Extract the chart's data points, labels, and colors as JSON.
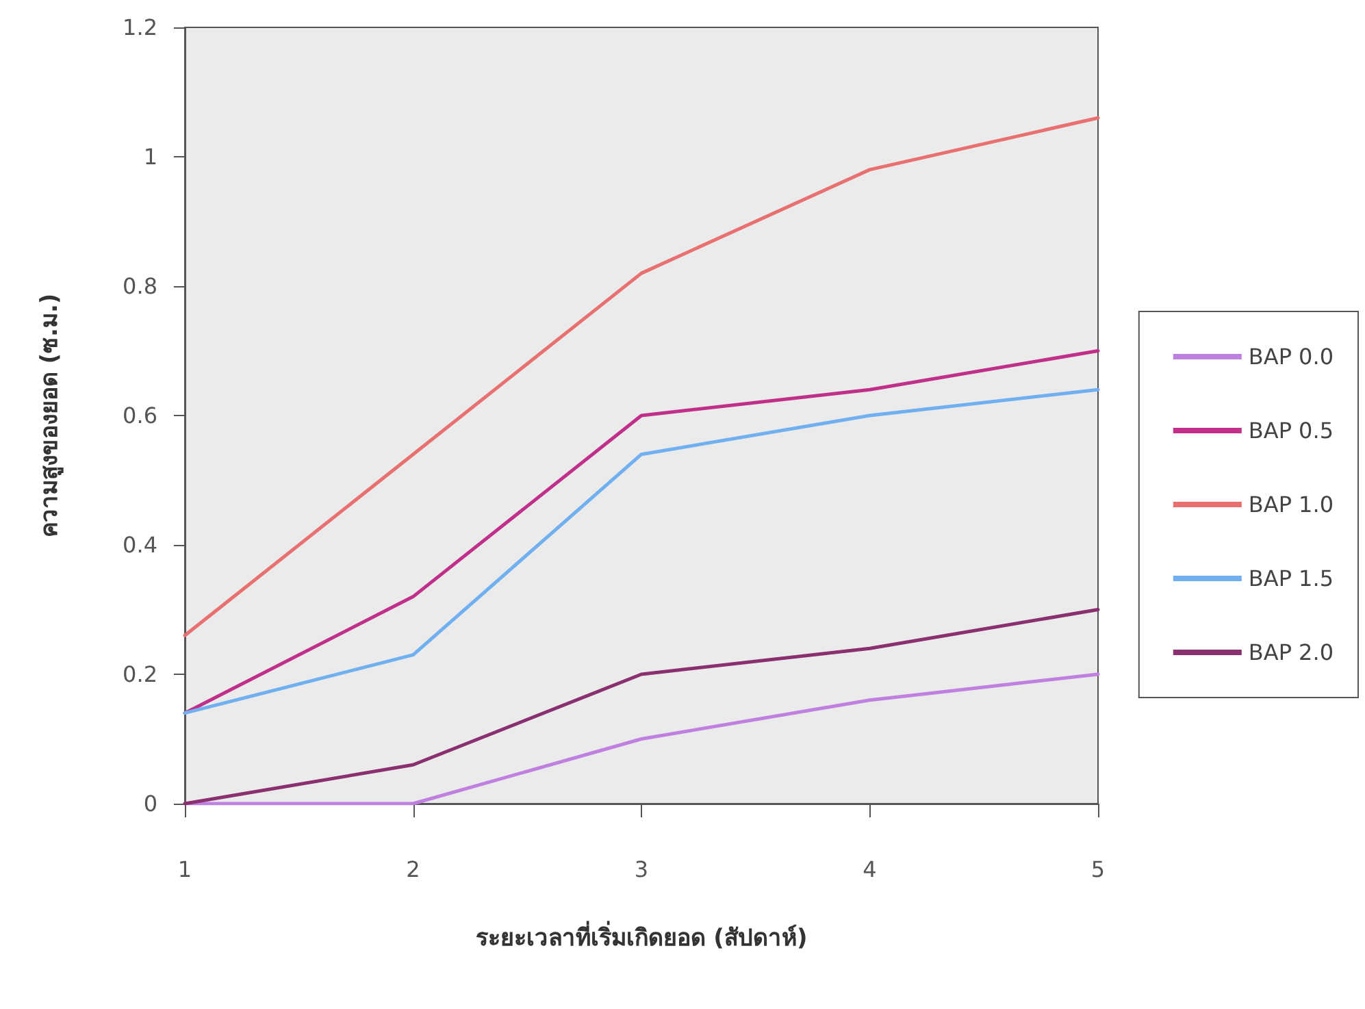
{
  "chart_data": {
    "type": "line",
    "xlabel": "ระยะเวลาที่เริ่มเกิดยอด (สัปดาห์)",
    "ylabel": "ความสูงของยอด (ซ.ม.)",
    "x": [
      1,
      2,
      3,
      4,
      5
    ],
    "xlim": [
      1,
      5
    ],
    "xticks": [
      1,
      2,
      3,
      4,
      5
    ],
    "ylim": [
      0,
      1.2
    ],
    "yticks": [
      0,
      0.2,
      0.4,
      0.6,
      0.8,
      1,
      1.2
    ],
    "grid": false,
    "legend": "right",
    "marker": "none",
    "line_style": "solid",
    "series": [
      {
        "name": "BAP 0.0",
        "color": "#c080e0",
        "values": [
          0,
          0,
          0.1,
          0.16,
          0.2
        ]
      },
      {
        "name": "BAP 0.5",
        "color": "#c0308a",
        "values": [
          0.14,
          0.32,
          0.6,
          0.64,
          0.7
        ]
      },
      {
        "name": "BAP 1.0",
        "color": "#e87070",
        "values": [
          0.26,
          0.54,
          0.82,
          0.98,
          1.06
        ]
      },
      {
        "name": "BAP 1.5",
        "color": "#70b0f0",
        "values": [
          0.14,
          0.23,
          0.54,
          0.6,
          0.64
        ]
      },
      {
        "name": "BAP 2.0",
        "color": "#8a3070",
        "values": [
          0,
          0.06,
          0.2,
          0.24,
          0.3
        ]
      }
    ]
  }
}
